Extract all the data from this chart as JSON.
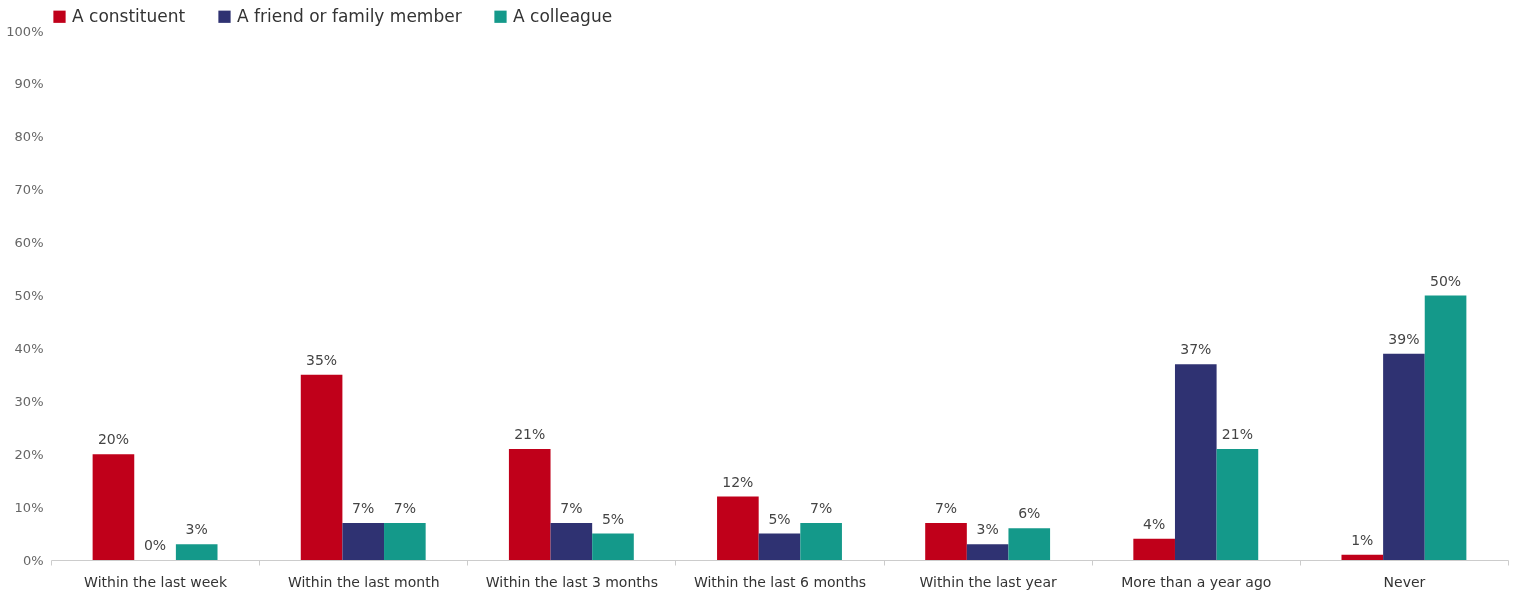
{
  "chart_data": {
    "type": "bar",
    "categories": [
      "Within the last week",
      "Within the last month",
      "Within the last 3 months",
      "Within the last 6 months",
      "Within the last year",
      "More than a year ago",
      "Never"
    ],
    "series": [
      {
        "name": "A constituent",
        "color": "#c0001a",
        "values": [
          20,
          35,
          21,
          12,
          7,
          4,
          1
        ],
        "value_labels": [
          "20%",
          "35%",
          "21%",
          "12%",
          "7%",
          "4%",
          "1%"
        ]
      },
      {
        "name": "A friend or family member",
        "color": "#2f3272",
        "values": [
          0,
          7,
          7,
          5,
          3,
          37,
          39
        ],
        "value_labels": [
          "0%",
          "7%",
          "7%",
          "5%",
          "3%",
          "37%",
          "39%"
        ]
      },
      {
        "name": "A colleague",
        "color": "#14998a",
        "values": [
          3,
          7,
          5,
          7,
          6,
          21,
          50
        ],
        "value_labels": [
          "3%",
          "7%",
          "5%",
          "7%",
          "6%",
          "21%",
          "50%"
        ]
      }
    ],
    "ylim": [
      0,
      100
    ],
    "yticks": [
      {
        "value": 0,
        "label": "0%"
      },
      {
        "value": 10,
        "label": "10%"
      },
      {
        "value": 20,
        "label": "20%"
      },
      {
        "value": 30,
        "label": "30%"
      },
      {
        "value": 40,
        "label": "40%"
      },
      {
        "value": 50,
        "label": "50%"
      },
      {
        "value": 60,
        "label": "60%"
      },
      {
        "value": 70,
        "label": "70%"
      },
      {
        "value": 80,
        "label": "80%"
      },
      {
        "value": 90,
        "label": "90%"
      },
      {
        "value": 100,
        "label": "100%"
      }
    ],
    "grid": false,
    "legend": "top"
  }
}
